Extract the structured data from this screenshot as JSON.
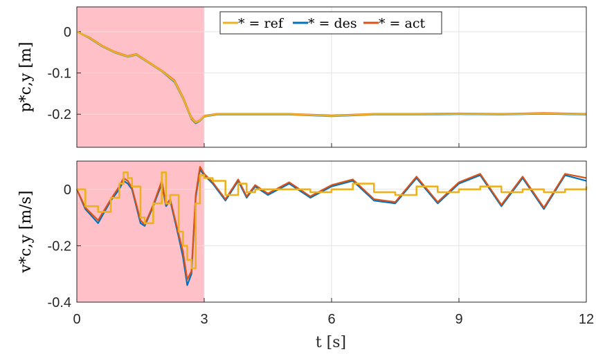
{
  "colors": {
    "ref": "#EDB120",
    "des": "#0072BD",
    "act": "#D95319",
    "shade": "#FFC0C8"
  },
  "legend": {
    "placement": "top-center",
    "entries": [
      "* = ref",
      "* = des",
      "* = act"
    ]
  },
  "xaxis": {
    "label": "t [s]",
    "ticks": [
      "0",
      "3",
      "6",
      "9",
      "12"
    ]
  },
  "chart_data": [
    {
      "type": "line",
      "ylabel": "p*c,y [m]",
      "xlim": [
        0,
        12
      ],
      "ylim": [
        -0.28,
        0.06
      ],
      "yticks": [
        "0",
        "-0.1",
        "-0.2"
      ],
      "grid": true,
      "shaded_region": [
        0,
        3
      ],
      "series": [
        {
          "name": "* = ref",
          "x": [
            0,
            0.3,
            0.6,
            0.9,
            1.2,
            1.4,
            1.7,
            2.0,
            2.3,
            2.5,
            2.7,
            2.8,
            2.9,
            3.0,
            3.3,
            4,
            5,
            6,
            7,
            8,
            9,
            10,
            11,
            12
          ],
          "y": [
            0,
            -0.015,
            -0.035,
            -0.05,
            -0.06,
            -0.055,
            -0.075,
            -0.095,
            -0.12,
            -0.16,
            -0.21,
            -0.22,
            -0.215,
            -0.205,
            -0.2,
            -0.2,
            -0.2,
            -0.204,
            -0.2,
            -0.2,
            -0.199,
            -0.2,
            -0.198,
            -0.2
          ]
        },
        {
          "name": "* = des",
          "x": [
            0,
            0.3,
            0.6,
            0.9,
            1.2,
            1.4,
            1.7,
            2.0,
            2.3,
            2.5,
            2.7,
            2.8,
            2.9,
            3.0,
            3.3,
            4,
            5,
            6,
            7,
            8,
            9,
            10,
            11,
            12
          ],
          "y": [
            0,
            -0.016,
            -0.036,
            -0.051,
            -0.061,
            -0.056,
            -0.076,
            -0.096,
            -0.122,
            -0.162,
            -0.212,
            -0.222,
            -0.216,
            -0.206,
            -0.201,
            -0.201,
            -0.201,
            -0.205,
            -0.201,
            -0.201,
            -0.2,
            -0.201,
            -0.199,
            -0.201
          ]
        },
        {
          "name": "* = act",
          "x": [
            0,
            0.3,
            0.6,
            0.9,
            1.2,
            1.4,
            1.7,
            2.0,
            2.3,
            2.5,
            2.7,
            2.8,
            2.9,
            3.0,
            3.3,
            4,
            5,
            6,
            7,
            8,
            9,
            10,
            11,
            12
          ],
          "y": [
            0,
            -0.014,
            -0.034,
            -0.049,
            -0.059,
            -0.054,
            -0.074,
            -0.094,
            -0.118,
            -0.158,
            -0.208,
            -0.219,
            -0.214,
            -0.204,
            -0.199,
            -0.199,
            -0.199,
            -0.203,
            -0.199,
            -0.199,
            -0.198,
            -0.199,
            -0.197,
            -0.199
          ]
        }
      ]
    },
    {
      "type": "line",
      "ylabel": "v*c,y [m/s]",
      "xlim": [
        0,
        12
      ],
      "ylim": [
        -0.4,
        0.1
      ],
      "yticks": [
        "0",
        "-0.2",
        "-0.4"
      ],
      "grid": true,
      "shaded_region": [
        0,
        3
      ],
      "series": [
        {
          "name": "* = ref",
          "x": [
            0,
            0.2,
            0.5,
            0.8,
            1.0,
            1.1,
            1.2,
            1.3,
            1.5,
            1.6,
            1.8,
            2.0,
            2.1,
            2.2,
            2.4,
            2.5,
            2.6,
            2.7,
            2.8,
            2.9,
            3.0,
            3.2,
            3.5,
            3.8,
            4.0,
            4.2,
            4.5,
            5.0,
            5.5,
            6.0,
            6.5,
            7.0,
            7.5,
            8.0,
            8.5,
            9.0,
            9.5,
            10.0,
            10.5,
            11.0,
            11.5,
            12.0
          ],
          "y": [
            0,
            -0.06,
            -0.08,
            -0.03,
            0.02,
            0.06,
            0.04,
            0.01,
            -0.1,
            -0.12,
            -0.05,
            0.06,
            -0.05,
            -0.02,
            -0.15,
            -0.2,
            -0.25,
            -0.28,
            -0.05,
            0.05,
            0.04,
            0.03,
            -0.02,
            0.02,
            -0.01,
            0.0,
            0.0,
            0.0,
            -0.01,
            0.0,
            0.02,
            -0.01,
            -0.02,
            0.01,
            -0.01,
            0.0,
            0.01,
            -0.01,
            0.0,
            -0.01,
            0.0,
            0.01
          ]
        },
        {
          "name": "* = des",
          "x": [
            0,
            0.2,
            0.5,
            0.8,
            1.0,
            1.1,
            1.2,
            1.3,
            1.5,
            1.6,
            1.8,
            2.0,
            2.1,
            2.2,
            2.4,
            2.5,
            2.6,
            2.7,
            2.8,
            2.9,
            3.0,
            3.2,
            3.5,
            3.8,
            4.0,
            4.2,
            4.5,
            5.0,
            5.5,
            6.0,
            6.5,
            7.0,
            7.5,
            8.0,
            8.5,
            9.0,
            9.5,
            10.0,
            10.5,
            11.0,
            11.5,
            12.0
          ],
          "y": [
            0,
            -0.07,
            -0.12,
            -0.04,
            0.0,
            0.03,
            0.02,
            0.0,
            -0.12,
            -0.13,
            -0.06,
            0.02,
            -0.06,
            -0.04,
            -0.17,
            -0.24,
            -0.34,
            -0.3,
            -0.03,
            0.07,
            0.05,
            0.02,
            -0.04,
            0.03,
            -0.03,
            0.01,
            -0.02,
            0.02,
            -0.03,
            0.01,
            0.03,
            -0.04,
            -0.05,
            0.04,
            -0.05,
            0.02,
            0.05,
            -0.06,
            0.04,
            -0.07,
            0.05,
            0.03
          ]
        },
        {
          "name": "* = act",
          "x": [
            0,
            0.2,
            0.5,
            0.8,
            1.0,
            1.1,
            1.2,
            1.3,
            1.5,
            1.6,
            1.8,
            2.0,
            2.1,
            2.2,
            2.4,
            2.5,
            2.6,
            2.7,
            2.8,
            2.9,
            3.0,
            3.2,
            3.5,
            3.8,
            4.0,
            4.2,
            4.5,
            5.0,
            5.5,
            6.0,
            6.5,
            7.0,
            7.5,
            8.0,
            8.5,
            9.0,
            9.5,
            10.0,
            10.5,
            11.0,
            11.5,
            12.0
          ],
          "y": [
            0,
            -0.065,
            -0.11,
            -0.035,
            0.01,
            0.04,
            0.03,
            0.005,
            -0.11,
            -0.125,
            -0.055,
            0.03,
            -0.055,
            -0.035,
            -0.16,
            -0.22,
            -0.32,
            -0.29,
            -0.02,
            0.08,
            0.055,
            0.025,
            -0.035,
            0.035,
            -0.025,
            0.015,
            -0.015,
            0.025,
            -0.025,
            0.015,
            0.035,
            -0.035,
            -0.045,
            0.045,
            -0.045,
            0.025,
            0.055,
            -0.055,
            0.045,
            -0.065,
            0.055,
            0.04
          ]
        }
      ]
    }
  ]
}
